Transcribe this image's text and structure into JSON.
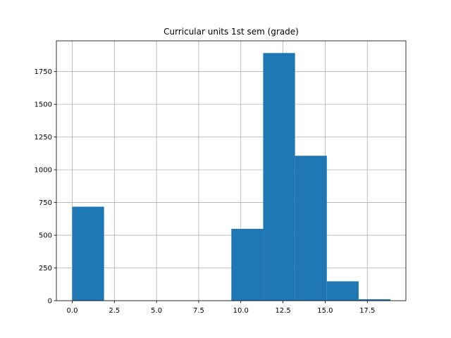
{
  "chart_data": {
    "type": "bar",
    "title": "Curricular units 1st sem (grade)",
    "xlabel": "",
    "ylabel": "",
    "xlim": [
      -0.94,
      19.79
    ],
    "ylim": [
      0,
      1985
    ],
    "grid": true,
    "bar_color": "#1f77b4",
    "bins": [
      {
        "x0": 0.0,
        "x1": 1.8875,
        "count": 718
      },
      {
        "x0": 1.8875,
        "x1": 3.775,
        "count": 0
      },
      {
        "x0": 3.775,
        "x1": 5.6625,
        "count": 0
      },
      {
        "x0": 5.6625,
        "x1": 7.55,
        "count": 0
      },
      {
        "x0": 7.55,
        "x1": 9.4375,
        "count": 0
      },
      {
        "x0": 9.4375,
        "x1": 11.325,
        "count": 549
      },
      {
        "x0": 11.325,
        "x1": 13.2125,
        "count": 1892
      },
      {
        "x0": 13.2125,
        "x1": 15.1,
        "count": 1107
      },
      {
        "x0": 15.1,
        "x1": 16.9875,
        "count": 148
      },
      {
        "x0": 16.9875,
        "x1": 18.875,
        "count": 11
      }
    ],
    "xticks": [
      0.0,
      2.5,
      5.0,
      7.5,
      10.0,
      12.5,
      15.0,
      17.5
    ],
    "xtick_labels": [
      "0.0",
      "2.5",
      "5.0",
      "7.5",
      "10.0",
      "12.5",
      "15.0",
      "17.5"
    ],
    "yticks": [
      0,
      250,
      500,
      750,
      1000,
      1250,
      1500,
      1750
    ],
    "ytick_labels": [
      "0",
      "250",
      "500",
      "750",
      "1000",
      "1250",
      "1500",
      "1750"
    ]
  }
}
